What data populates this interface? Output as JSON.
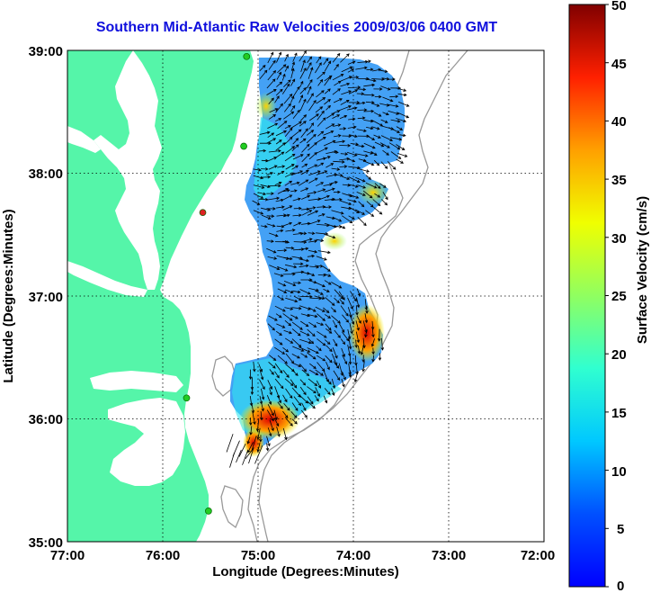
{
  "title": "Southern Mid-Atlantic Raw Velocities 2009/03/06 0400 GMT",
  "x_axis": {
    "label": "Longitude (Degrees:Minutes)",
    "ticks": [
      "77:00",
      "76:00",
      "75:00",
      "74:00",
      "73:00",
      "72:00"
    ],
    "range": [
      -77,
      -72
    ]
  },
  "y_axis": {
    "label": "Latitude (Degrees:Minutes)",
    "ticks": [
      "39:00",
      "38:00",
      "37:00",
      "36:00",
      "35:00"
    ],
    "range": [
      35,
      39
    ]
  },
  "colorbar": {
    "label": "Surface Velocity (cm/s)",
    "range": [
      0,
      50
    ],
    "ticks": [
      "50",
      "45",
      "40",
      "35",
      "30",
      "25",
      "20",
      "15",
      "10",
      "5",
      "0"
    ],
    "colormap": "jet"
  },
  "colors": {
    "land": "#55f5a9",
    "water": "#ffffff",
    "title": "#1010dd",
    "contour": "#999999",
    "station": "#22cc22",
    "station_alt": "#dd2222"
  },
  "grid": true,
  "stations": [
    {
      "lon": -75.12,
      "lat": 38.95,
      "color": "station"
    },
    {
      "lon": -75.15,
      "lat": 38.22,
      "color": "station"
    },
    {
      "lon": -75.58,
      "lat": 37.68,
      "color": "station_alt"
    },
    {
      "lon": -75.75,
      "lat": 36.17,
      "color": "station"
    },
    {
      "lon": -75.52,
      "lat": 35.25,
      "color": "station"
    }
  ]
}
